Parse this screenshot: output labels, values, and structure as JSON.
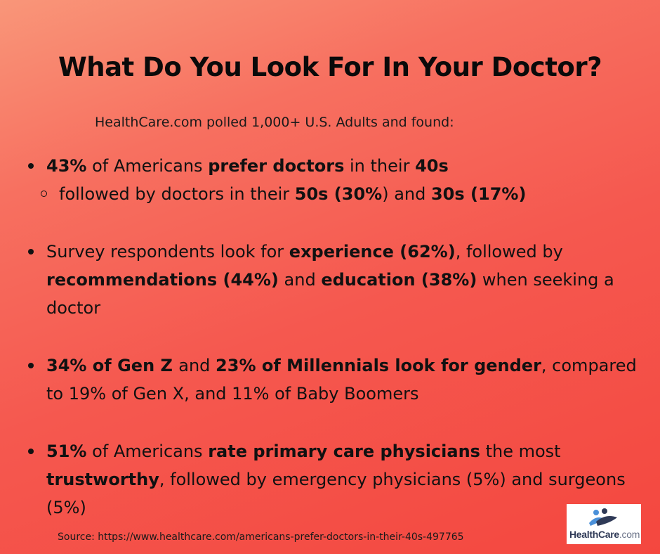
{
  "title": "What Do You Look For In Your Doctor?",
  "subtitle": "HealthCare.com polled 1,000+ U.S. Adults and found:",
  "bullets": {
    "b1": {
      "p1": "43%",
      "p2": " of Americans ",
      "p3": "prefer doctors",
      "p4": " in their ",
      "p5": "40s",
      "sub": {
        "s1": "followed by doctors in their ",
        "s2": "50s (30%",
        "s3": ") and ",
        "s4": "30s (17%)"
      }
    },
    "b2": {
      "p1": "Survey respondents look for ",
      "p2": "experience (62%)",
      "p3": ", followed by ",
      "p4": "recommendations (44%)",
      "p5": " and ",
      "p6": "education (38%)",
      "p7": " when seeking a doctor"
    },
    "b3": {
      "p1": "34% of Gen Z ",
      "p2": "and ",
      "p3": "23% of Millennials look for gender",
      "p4": ", compared to 19% of Gen X, and 11% of Baby Boomers"
    },
    "b4": {
      "p1": "51%",
      "p2": " of Americans ",
      "p3": "rate primary care physicians",
      "p4": " the most ",
      "p5": "trustworthy",
      "p6": ", followed by emergency physicians (5%) and surgeons (5%)"
    }
  },
  "source": "Source: https://www.healthcare.com/americans-prefer-doctors-in-their-40s-497765",
  "logo": {
    "name": "HealthCare",
    "suffix": ".com",
    "colors": {
      "blue": "#4a90d9",
      "navy": "#2f3a57"
    }
  }
}
